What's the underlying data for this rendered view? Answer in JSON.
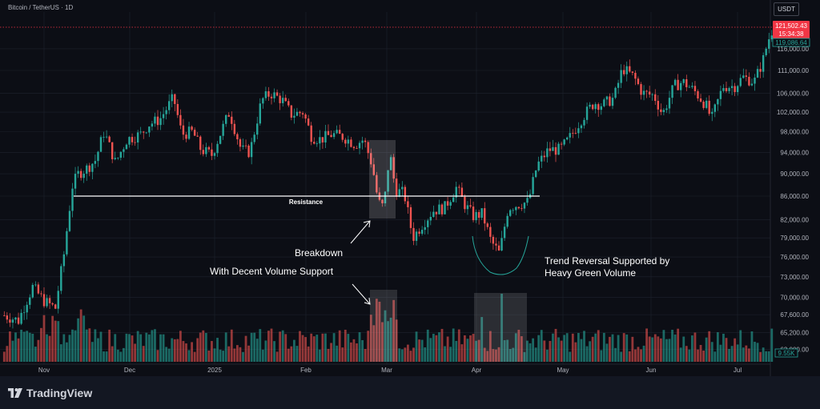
{
  "header": {
    "symbol_title": "Bitcoin / TetherUS · 1D",
    "currency_label": "USDT"
  },
  "footer": {
    "brand": "TradingView"
  },
  "price_badges": {
    "last_price": "121,502.43",
    "countdown": "15:34:38",
    "reference_price": "119,086.64",
    "volume_value": "9.55K"
  },
  "annotations": {
    "resistance": "Resistance",
    "breakdown": "Breakdown",
    "volume_support": "With Decent Volume Support",
    "reversal_line1": "Trend Reversal Supported by",
    "reversal_line2": "Heavy Green Volume"
  },
  "colors": {
    "up": "#26a69a",
    "down": "#ef5350",
    "background": "#0c0e15",
    "grid": "#1e222d",
    "resistance_line": "#ffffff",
    "last_price_badge": "#f23645"
  },
  "chart_data": {
    "type": "candlestick",
    "title": "Bitcoin / TetherUS · 1D",
    "y_axis_ticks": [
      "116,000.00",
      "111,000.00",
      "106,000.00",
      "102,000.00",
      "98,000.00",
      "94,000.00",
      "90,000.00",
      "86,000.00",
      "82,000.00",
      "79,000.00",
      "76,000.00",
      "73,000.00",
      "70,000.00",
      "67,600.00",
      "65,200.00",
      "63,000.00"
    ],
    "x_axis_ticks": [
      "Nov",
      "Dec",
      "2025",
      "Feb",
      "Mar",
      "Apr",
      "May",
      "Jun",
      "Jul"
    ],
    "resistance_level": 86000,
    "log_scale": true,
    "grid": true,
    "series": [
      {
        "name": "",
        "kind": "price-path",
        "points": [
          [
            "Oct 18",
            67500
          ],
          [
            "Oct 23",
            66800
          ],
          [
            "Oct 28",
            71500
          ],
          [
            "Nov 1",
            69500
          ],
          [
            "Nov 5",
            68500
          ],
          [
            "Nov 8",
            76500
          ],
          [
            "Nov 11",
            88000
          ],
          [
            "Nov 13",
            90000
          ],
          [
            "Nov 16",
            91000
          ],
          [
            "Nov 19",
            92500
          ],
          [
            "Nov 22",
            98000
          ],
          [
            "Nov 26",
            92000
          ],
          [
            "Nov 30",
            96500
          ],
          [
            "Dec 5",
            97500
          ],
          [
            "Dec 8",
            99500
          ],
          [
            "Dec 12",
            100500
          ],
          [
            "Dec 17",
            105000
          ],
          [
            "Dec 20",
            97500
          ],
          [
            "Dec 24",
            98000
          ],
          [
            "Dec 27",
            94500
          ],
          [
            "Dec 31",
            93500
          ],
          [
            "Jan 6",
            102000
          ],
          [
            "Jan 10",
            94500
          ],
          [
            "Jan 13",
            94000
          ],
          [
            "Jan 17",
            104500
          ],
          [
            "Jan 20",
            106000
          ],
          [
            "Jan 24",
            104500
          ],
          [
            "Jan 27",
            101500
          ],
          [
            "Jan 31",
            102000
          ],
          [
            "Feb 3",
            97000
          ],
          [
            "Feb 6",
            96500
          ],
          [
            "Feb 10",
            97500
          ],
          [
            "Feb 14",
            97000
          ],
          [
            "Feb 18",
            95500
          ],
          [
            "Feb 21",
            96500
          ],
          [
            "Feb 24",
            91500
          ],
          [
            "Feb 26",
            85000
          ],
          [
            "Feb 28",
            84000
          ],
          [
            "Mar 2",
            94000
          ],
          [
            "Mar 4",
            87000
          ],
          [
            "Mar 7",
            86500
          ],
          [
            "Mar 10",
            79000
          ],
          [
            "Mar 13",
            81000
          ],
          [
            "Mar 17",
            83500
          ],
          [
            "Mar 21",
            84000
          ],
          [
            "Mar 25",
            87500
          ],
          [
            "Mar 28",
            84500
          ],
          [
            "Mar 31",
            82500
          ],
          [
            "Apr 3",
            83000
          ],
          [
            "Apr 6",
            78500
          ],
          [
            "Apr 9",
            76500
          ],
          [
            "Apr 12",
            84000
          ],
          [
            "Apr 15",
            84500
          ],
          [
            "Apr 19",
            85000
          ],
          [
            "Apr 22",
            91500
          ],
          [
            "Apr 26",
            94500
          ],
          [
            "Apr 30",
            94500
          ],
          [
            "May 3",
            96500
          ],
          [
            "May 8",
            101000
          ],
          [
            "May 12",
            104000
          ],
          [
            "May 15",
            103500
          ],
          [
            "May 19",
            105000
          ],
          [
            "May 22",
            111500
          ],
          [
            "May 26",
            109500
          ],
          [
            "May 29",
            106000
          ],
          [
            "Jun 2",
            105500
          ],
          [
            "Jun 5",
            101500
          ],
          [
            "Jun 9",
            107500
          ],
          [
            "Jun 12",
            108500
          ],
          [
            "Jun 16",
            106500
          ],
          [
            "Jun 20",
            103500
          ],
          [
            "Jun 22",
            100500
          ],
          [
            "Jun 26",
            107500
          ],
          [
            "Jun 30",
            107500
          ],
          [
            "Jul 3",
            109500
          ],
          [
            "Jul 7",
            108500
          ],
          [
            "Jul 10",
            113000
          ],
          [
            "Jul 12",
            118000
          ],
          [
            "Jul 14",
            121500
          ]
        ]
      }
    ]
  }
}
